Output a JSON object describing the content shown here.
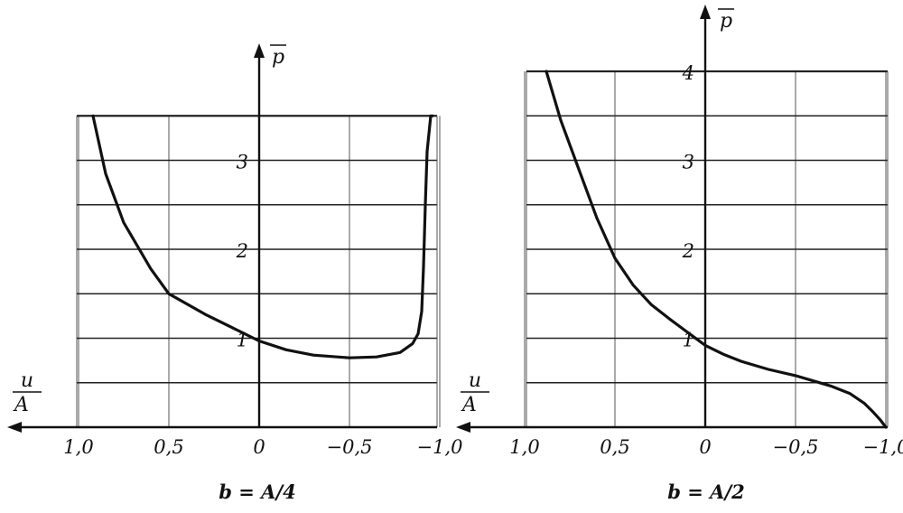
{
  "chart_data": [
    {
      "type": "line",
      "caption": "b = A/4",
      "ylabel": "p",
      "xlabel_num": "u",
      "xlabel_den": "A",
      "x_direction": "reversed",
      "xlim": [
        1.0,
        -1.0
      ],
      "ylim": [
        0,
        3.5
      ],
      "x_ticks": [
        1.0,
        0.5,
        0,
        -0.5,
        -1.0
      ],
      "x_tick_labels": [
        "1,0",
        "0,5",
        "0",
        "−0,5",
        "−1,0"
      ],
      "y_ticks": [
        1,
        2,
        3
      ],
      "y_tick_labels": [
        "1",
        "2",
        "3"
      ],
      "grid": true,
      "series": [
        {
          "x": [
            0.92,
            0.85,
            0.75,
            0.6,
            0.5,
            0.3,
            0.15,
            0.0,
            -0.15,
            -0.3,
            -0.5,
            -0.65,
            -0.78,
            -0.85,
            -0.88,
            -0.9,
            -0.91,
            -0.92,
            -0.93,
            -0.95,
            -0.96
          ],
          "y": [
            3.5,
            2.85,
            2.3,
            1.78,
            1.5,
            1.27,
            1.12,
            0.97,
            0.87,
            0.81,
            0.78,
            0.79,
            0.84,
            0.94,
            1.05,
            1.3,
            1.8,
            2.5,
            3.1,
            3.5,
            3.5
          ]
        }
      ]
    },
    {
      "type": "line",
      "caption": "b = A/2",
      "ylabel": "p",
      "xlabel_num": "u",
      "xlabel_den": "A",
      "x_direction": "reversed",
      "xlim": [
        1.0,
        -1.0
      ],
      "ylim": [
        0,
        4.0
      ],
      "x_ticks": [
        1.0,
        0.5,
        0,
        -0.5,
        -1.0
      ],
      "x_tick_labels": [
        "1,0",
        "0,5",
        "0",
        "−0,5",
        "−1,0"
      ],
      "y_ticks": [
        1,
        2,
        3,
        4
      ],
      "y_tick_labels": [
        "1",
        "2",
        "3",
        "4"
      ],
      "grid": true,
      "series": [
        {
          "x": [
            0.88,
            0.8,
            0.7,
            0.6,
            0.5,
            0.4,
            0.3,
            0.2,
            0.1,
            0.0,
            -0.1,
            -0.2,
            -0.35,
            -0.5,
            -0.6,
            -0.7,
            -0.8,
            -0.88,
            -0.93,
            -0.97,
            -1.0
          ],
          "y": [
            4.0,
            3.45,
            2.9,
            2.35,
            1.9,
            1.6,
            1.38,
            1.22,
            1.07,
            0.92,
            0.82,
            0.74,
            0.65,
            0.58,
            0.52,
            0.46,
            0.38,
            0.27,
            0.17,
            0.08,
            0.0
          ]
        }
      ]
    }
  ]
}
